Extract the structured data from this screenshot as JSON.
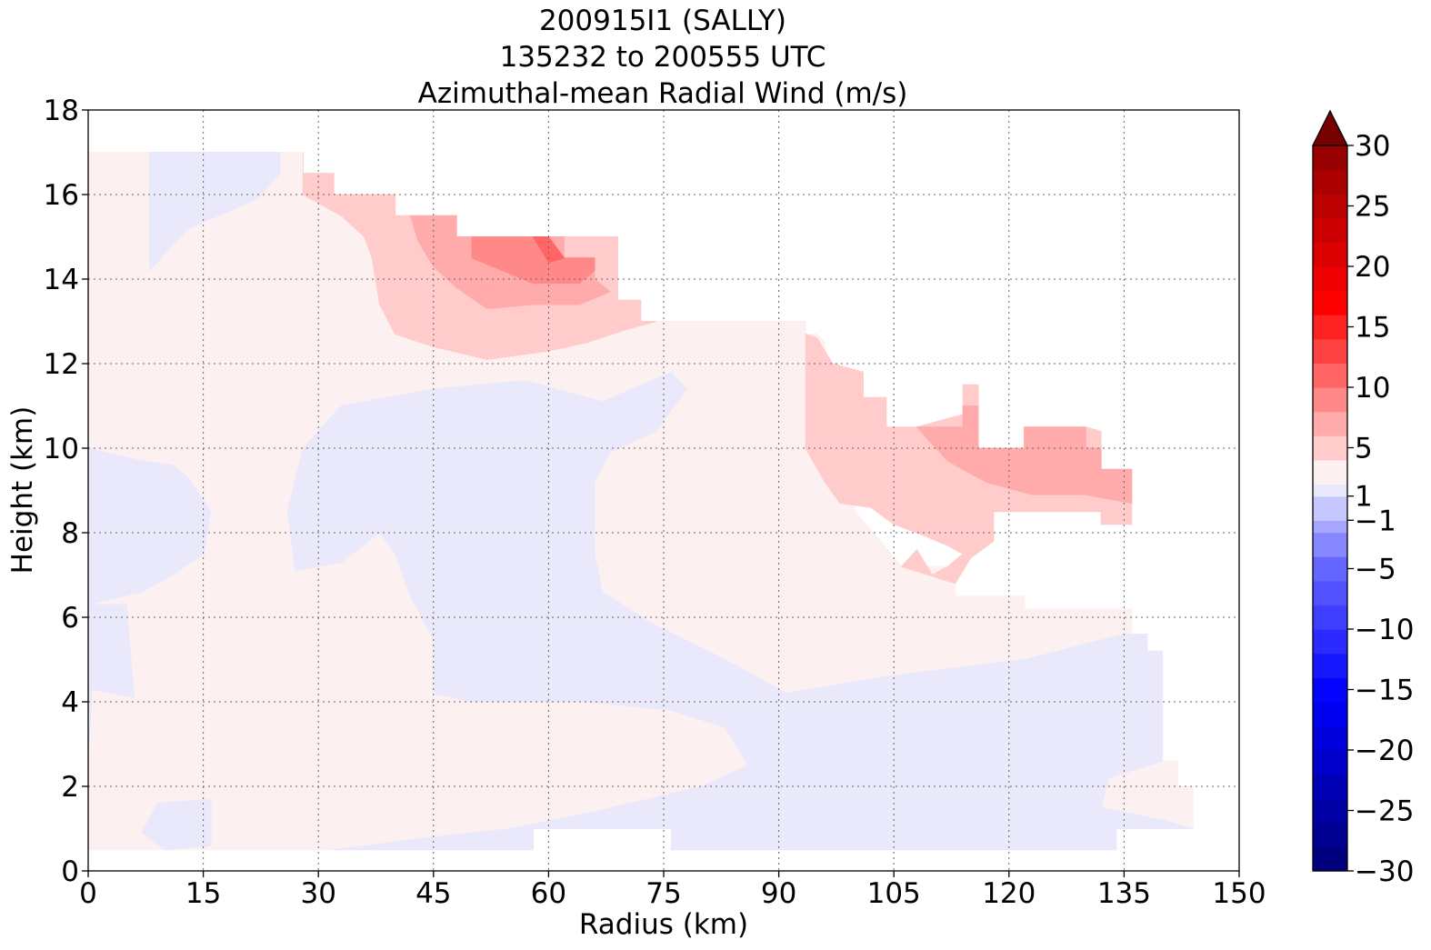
{
  "chart_data": {
    "type": "heatmap",
    "title_lines": [
      "200915I1 (SALLY)",
      "135232 to 200555 UTC",
      "Azimuthal-mean Radial Wind (m/s)"
    ],
    "xlabel": "Radius (km)",
    "ylabel": "Height (km)",
    "xlim": [
      0,
      150
    ],
    "ylim": [
      0,
      18
    ],
    "x_ticks": [
      0,
      15,
      30,
      45,
      60,
      75,
      90,
      105,
      120,
      135,
      150
    ],
    "y_ticks": [
      0,
      2,
      4,
      6,
      8,
      10,
      12,
      14,
      16,
      18
    ],
    "grid": true,
    "colorbar": {
      "range": [
        -30,
        30
      ],
      "levels": [
        -30,
        -28,
        -26,
        -24,
        -22,
        -20,
        -18,
        -16,
        -14,
        -12,
        -10,
        -8,
        -6,
        -4,
        -2,
        -1,
        1,
        2,
        4,
        6,
        8,
        10,
        12,
        14,
        16,
        18,
        20,
        22,
        24,
        26,
        28,
        30
      ],
      "tick_values": [
        -30,
        -25,
        -20,
        -15,
        -10,
        -5,
        -1,
        1,
        5,
        10,
        15,
        20,
        25,
        30
      ],
      "tick_labels": [
        "−30",
        "−25",
        "−20",
        "−15",
        "−10",
        "−5",
        "−1",
        "1",
        "5",
        "10",
        "15",
        "20",
        "25",
        "30"
      ],
      "extend": "max",
      "colors": [
        "#00007e",
        "#000091",
        "#0000a4",
        "#0000b7",
        "#0000ca",
        "#0000dd",
        "#0000f0",
        "#0505ff",
        "#1818ff",
        "#2b2bff",
        "#3e3eff",
        "#5151ff",
        "#6565ff",
        "#8787ff",
        "#a7a7ff",
        "#c7c7ff",
        "#e9e9fb",
        "#fdf0f0",
        "#ffcbcb",
        "#ffabab",
        "#ff8888",
        "#ff6565",
        "#ff4343",
        "#ff2222",
        "#ff0000",
        "#ee0000",
        "#dd0000",
        "#cc0000",
        "#bb0000",
        "#aa0000",
        "#990000",
        "#880000",
        "#770000"
      ]
    },
    "contour_regions": [
      {
        "level": "1 to 2",
        "color": "#fdf0f0",
        "outline": [
          [
            0,
            0.5
          ],
          [
            58,
            0.5
          ],
          [
            58,
            1
          ],
          [
            76,
            1
          ],
          [
            76,
            0.5
          ],
          [
            134,
            0.5
          ],
          [
            134,
            1
          ],
          [
            144,
            1
          ],
          [
            144,
            2
          ],
          [
            142,
            2
          ],
          [
            142,
            2.6
          ],
          [
            140,
            2.6
          ],
          [
            140,
            5.2
          ],
          [
            138,
            5.2
          ],
          [
            138,
            5.6
          ],
          [
            136,
            5.6
          ],
          [
            136,
            6.2
          ],
          [
            122,
            6.2
          ],
          [
            122,
            6.5
          ],
          [
            113,
            6.5
          ],
          [
            113,
            7.2
          ],
          [
            106,
            7.2
          ],
          [
            100,
            8.5
          ],
          [
            98,
            10
          ],
          [
            96,
            11
          ],
          [
            96,
            12.5
          ],
          [
            95,
            12.7
          ],
          [
            93.5,
            12.7
          ],
          [
            93.5,
            13
          ],
          [
            72,
            13
          ],
          [
            72,
            13.5
          ],
          [
            69,
            13.5
          ],
          [
            69,
            15
          ],
          [
            48,
            15
          ],
          [
            48,
            15.5
          ],
          [
            40,
            15.5
          ],
          [
            40,
            16
          ],
          [
            32,
            16
          ],
          [
            32,
            16.5
          ],
          [
            28,
            16.5
          ],
          [
            28,
            17
          ],
          [
            0,
            17
          ]
        ]
      },
      {
        "level": "-2 to -1",
        "color": "#e9e9fb",
        "outline": [
          [
            0,
            2.6
          ],
          [
            0.5,
            4.3
          ],
          [
            6,
            4.1
          ],
          [
            5,
            6.3
          ],
          [
            0,
            6.3
          ]
        ]
      },
      {
        "level": "-2 to -1",
        "color": "#e9e9fb",
        "outline": [
          [
            0,
            10
          ],
          [
            7,
            9.7
          ],
          [
            11,
            9.6
          ],
          [
            13,
            9.3
          ],
          [
            16,
            8.5
          ],
          [
            15,
            7.5
          ],
          [
            11,
            7
          ],
          [
            7,
            6.6
          ],
          [
            0,
            6.3
          ]
        ]
      },
      {
        "level": "-2 to -1",
        "color": "#e9e9fb",
        "outline": [
          [
            9,
            1.6
          ],
          [
            16,
            1.7
          ],
          [
            16,
            0.6
          ],
          [
            10,
            0.5
          ],
          [
            7,
            0.9
          ]
        ]
      },
      {
        "level": "-2 to -1",
        "color": "#e9e9fb",
        "outline": [
          [
            8,
            14.2
          ],
          [
            10,
            14.6
          ],
          [
            13,
            15.2
          ],
          [
            17,
            15.5
          ],
          [
            22,
            15.9
          ],
          [
            25,
            16.5
          ],
          [
            25,
            17
          ],
          [
            8,
            17
          ]
        ]
      },
      {
        "level": "-2 to -1",
        "color": "#e9e9fb",
        "outline": [
          [
            26,
            8.5
          ],
          [
            28,
            10
          ],
          [
            33,
            11
          ],
          [
            45,
            11.4
          ],
          [
            57,
            11.6
          ],
          [
            67,
            11.1
          ],
          [
            76,
            11.8
          ],
          [
            78,
            11.4
          ],
          [
            76,
            10.9
          ],
          [
            74,
            10.4
          ],
          [
            68,
            9.9
          ],
          [
            66,
            9.2
          ],
          [
            66,
            7.5
          ],
          [
            67,
            6.6
          ],
          [
            73,
            5.9
          ],
          [
            83,
            5
          ],
          [
            91,
            4.2
          ],
          [
            104,
            4.6
          ],
          [
            122,
            5
          ],
          [
            135,
            5.6
          ],
          [
            138,
            5.6
          ],
          [
            138,
            5.2
          ],
          [
            140,
            5.2
          ],
          [
            140,
            2.6
          ],
          [
            133,
            2.2
          ],
          [
            132,
            1.5
          ],
          [
            140,
            1.2
          ],
          [
            144,
            1
          ],
          [
            134,
            1
          ],
          [
            134,
            0.5
          ],
          [
            76,
            0.5
          ],
          [
            76,
            1
          ],
          [
            58,
            1
          ],
          [
            58,
            0.5
          ],
          [
            32,
            0.5
          ],
          [
            45,
            0.8
          ],
          [
            55,
            1
          ],
          [
            66,
            1.4
          ],
          [
            80,
            2
          ],
          [
            86,
            2.5
          ],
          [
            83,
            3.4
          ],
          [
            76,
            3.8
          ],
          [
            65,
            4
          ],
          [
            50,
            4
          ],
          [
            45,
            4.2
          ],
          [
            45,
            5.5
          ],
          [
            42,
            6.5
          ],
          [
            40,
            7.5
          ],
          [
            38,
            8
          ],
          [
            33,
            7.3
          ],
          [
            27,
            7.1
          ]
        ]
      },
      {
        "level": "2 to 4",
        "color": "#ffcbcb",
        "outline": [
          [
            28,
            17
          ],
          [
            28,
            16.5
          ],
          [
            32,
            16.5
          ],
          [
            32,
            16
          ],
          [
            40,
            16
          ],
          [
            40,
            15.5
          ],
          [
            48,
            15.5
          ],
          [
            48,
            15
          ],
          [
            69,
            15
          ],
          [
            69,
            13.5
          ],
          [
            72,
            13.5
          ],
          [
            72,
            13
          ],
          [
            74,
            13
          ],
          [
            70,
            12.8
          ],
          [
            65,
            12.5
          ],
          [
            60,
            12.3
          ],
          [
            52,
            12.1
          ],
          [
            45,
            12.4
          ],
          [
            40,
            12.7
          ],
          [
            38,
            13.4
          ],
          [
            37,
            14.5
          ],
          [
            36,
            15
          ],
          [
            33,
            15.5
          ],
          [
            28,
            16
          ]
        ]
      },
      {
        "level": "2 to 4",
        "color": "#ffcbcb",
        "outline": [
          [
            93.5,
            10
          ],
          [
            96,
            9.2
          ],
          [
            98,
            8.7
          ],
          [
            102,
            8.6
          ],
          [
            105,
            8.2
          ],
          [
            108,
            8
          ],
          [
            112,
            7.7
          ],
          [
            114,
            7.5
          ],
          [
            112,
            7.2
          ],
          [
            110,
            7
          ],
          [
            108,
            7.6
          ],
          [
            106,
            7.2
          ],
          [
            113,
            6.8
          ],
          [
            115,
            7.4
          ],
          [
            118,
            7.8
          ],
          [
            118,
            8.5
          ],
          [
            132,
            8.5
          ],
          [
            132,
            8.2
          ],
          [
            136,
            8.2
          ],
          [
            136,
            9.5
          ],
          [
            132,
            9.5
          ],
          [
            132,
            10.4
          ],
          [
            130,
            10.5
          ],
          [
            122,
            10.5
          ],
          [
            122,
            10
          ],
          [
            116,
            10
          ],
          [
            116,
            11.5
          ],
          [
            114,
            11.5
          ],
          [
            114,
            10.8
          ],
          [
            108,
            10.5
          ],
          [
            104,
            10.5
          ],
          [
            104,
            11.2
          ],
          [
            101,
            11.2
          ],
          [
            101,
            11.8
          ],
          [
            97,
            12
          ],
          [
            95,
            12.6
          ],
          [
            93.5,
            12.7
          ]
        ]
      },
      {
        "level": "4 to 6",
        "color": "#ffabab",
        "outline": [
          [
            42,
            15.5
          ],
          [
            48,
            15.5
          ],
          [
            48,
            15
          ],
          [
            62,
            15
          ],
          [
            62,
            14.5
          ],
          [
            66,
            14.5
          ],
          [
            66,
            14
          ],
          [
            68,
            13.7
          ],
          [
            64,
            13.4
          ],
          [
            58,
            13.4
          ],
          [
            52,
            13.3
          ],
          [
            48,
            13.8
          ],
          [
            45,
            14.3
          ],
          [
            43,
            14.9
          ]
        ]
      },
      {
        "level": "4 to 6",
        "color": "#ffabab",
        "outline": [
          [
            108,
            10.5
          ],
          [
            114,
            10.5
          ],
          [
            114,
            11
          ],
          [
            116,
            11
          ],
          [
            116,
            10
          ],
          [
            122,
            10
          ],
          [
            122,
            10.5
          ],
          [
            130,
            10.5
          ],
          [
            130,
            10
          ],
          [
            132,
            10
          ],
          [
            132,
            9.5
          ],
          [
            136,
            9.5
          ],
          [
            136,
            8.7
          ],
          [
            130,
            8.9
          ],
          [
            123,
            8.9
          ],
          [
            117,
            9.2
          ],
          [
            112,
            9.7
          ],
          [
            110,
            10.1
          ]
        ]
      },
      {
        "level": "6 to 8",
        "color": "#ff8888",
        "outline": [
          [
            50,
            15
          ],
          [
            60,
            15
          ],
          [
            62,
            14.5
          ],
          [
            66,
            14.5
          ],
          [
            66,
            14.2
          ],
          [
            64,
            13.9
          ],
          [
            58,
            13.9
          ],
          [
            54,
            14.2
          ],
          [
            50,
            14.5
          ]
        ]
      },
      {
        "level": "8 to 10",
        "color": "#ff6565",
        "outline": [
          [
            58,
            15
          ],
          [
            60,
            15
          ],
          [
            62,
            14.5
          ],
          [
            60,
            14.4
          ]
        ]
      }
    ]
  }
}
